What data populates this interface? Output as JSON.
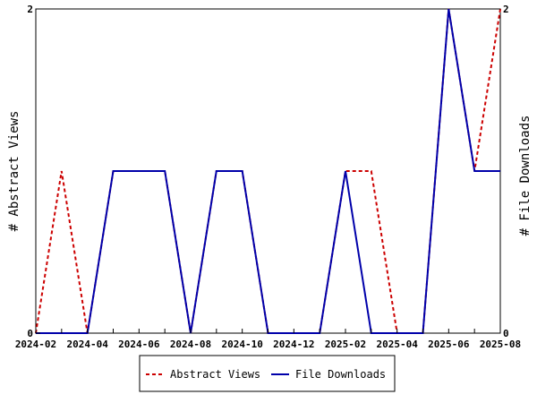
{
  "chart_data": {
    "type": "line",
    "title": "",
    "ylabel_left": "# Abstract Views",
    "ylabel_right": "# File Downloads",
    "ylim_left": [
      0,
      2
    ],
    "ylim_right": [
      0,
      2
    ],
    "x": [
      "2024-02",
      "2024-03",
      "2024-04",
      "2024-05",
      "2024-06",
      "2024-07",
      "2024-08",
      "2024-09",
      "2024-10",
      "2024-11",
      "2024-12",
      "2025-01",
      "2025-02",
      "2025-03",
      "2025-04",
      "2025-05",
      "2025-06",
      "2025-07",
      "2025-08"
    ],
    "x_tick_labels": [
      "2024-02",
      "2024-04",
      "2024-06",
      "2024-08",
      "2024-10",
      "2024-12",
      "2025-02",
      "2025-04",
      "2025-06",
      "2025-08"
    ],
    "left_tick_labels": [
      "0",
      "2"
    ],
    "right_tick_labels": [
      "0",
      "2"
    ],
    "grid": false,
    "legend_position": "bottom",
    "series": [
      {
        "name": "Abstract Views",
        "axis": "left",
        "color": "#cc0000",
        "style": "dashed",
        "values": [
          0,
          1,
          0,
          1,
          1,
          1,
          0,
          1,
          1,
          0,
          0,
          0,
          1,
          1,
          0,
          0,
          2,
          1,
          2
        ]
      },
      {
        "name": "File Downloads",
        "axis": "right",
        "color": "#0000aa",
        "style": "solid",
        "values": [
          0,
          0,
          0,
          1,
          1,
          1,
          0,
          1,
          1,
          0,
          0,
          0,
          1,
          0,
          0,
          0,
          2,
          1,
          1
        ]
      }
    ]
  }
}
